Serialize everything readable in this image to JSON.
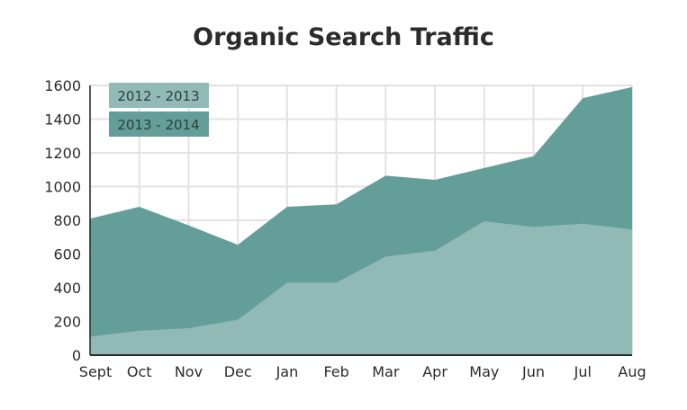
{
  "chart_data": {
    "type": "area",
    "title": "Organic Search Traffic",
    "xlabel": "",
    "ylabel": "",
    "categories": [
      "Sept",
      "Oct",
      "Nov",
      "Dec",
      "Jan",
      "Feb",
      "Mar",
      "Apr",
      "May",
      "Jun",
      "Jul",
      "Aug"
    ],
    "ylim": [
      0,
      1600
    ],
    "yticks": [
      0,
      200,
      400,
      600,
      800,
      1000,
      1200,
      1400,
      1600
    ],
    "grid": true,
    "legend_position": "top-left",
    "series": [
      {
        "name": "2013 - 2014",
        "color": "#639e98",
        "values": [
          810,
          880,
          770,
          655,
          880,
          895,
          1065,
          1040,
          1110,
          1180,
          1525,
          1590
        ]
      },
      {
        "name": "2012 - 2013",
        "color": "#91bab6",
        "values": [
          110,
          145,
          160,
          210,
          430,
          430,
          585,
          620,
          795,
          760,
          780,
          745
        ]
      }
    ]
  }
}
